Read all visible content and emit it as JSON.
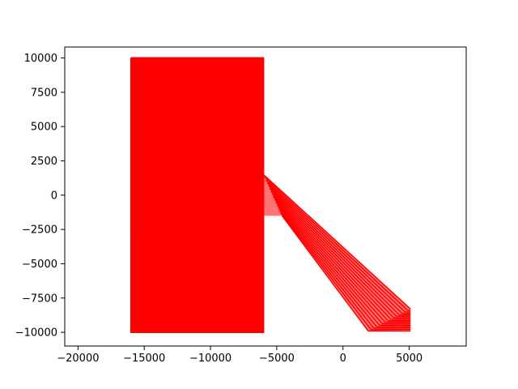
{
  "chart_data": {
    "type": "line",
    "title": "",
    "xlabel": "",
    "ylabel": "",
    "xlim": [
      -21000,
      9300
    ],
    "ylim": [
      -11000,
      10800
    ],
    "grid": false,
    "legend": "none",
    "series_color": "#ff0000",
    "xticks": [
      -20000,
      -15000,
      -10000,
      -5000,
      0,
      5000
    ],
    "xtick_labels": [
      "−20000",
      "−15000",
      "−10000",
      "−5000",
      "0",
      "5000"
    ],
    "yticks": [
      -10000,
      -7500,
      -5000,
      -2500,
      0,
      2500,
      5000,
      7500,
      10000
    ],
    "ytick_labels": [
      "−10000",
      "−7500",
      "−5000",
      "−2500",
      "0",
      "2500",
      "5000",
      "7500",
      "10000"
    ],
    "series": [
      {
        "description": "closed outline polygons, approximate",
        "outer_rectangle": {
          "x": [
            -16000,
            -6000,
            -6000,
            -16000,
            -16000
          ],
          "y": [
            10000,
            10000,
            -10000,
            -10000,
            10000
          ]
        },
        "inner_rectangle_range": {
          "x": [
            -15000,
            -7000
          ],
          "y": [
            -9000,
            9000
          ]
        },
        "branch_upper": {
          "x": [
            -6000,
            5100
          ],
          "y": [
            1500,
            -8300
          ]
        },
        "branch_lower": {
          "x": [
            -4600,
            1900
          ],
          "y": [
            -1500,
            -9900
          ]
        }
      }
    ]
  }
}
